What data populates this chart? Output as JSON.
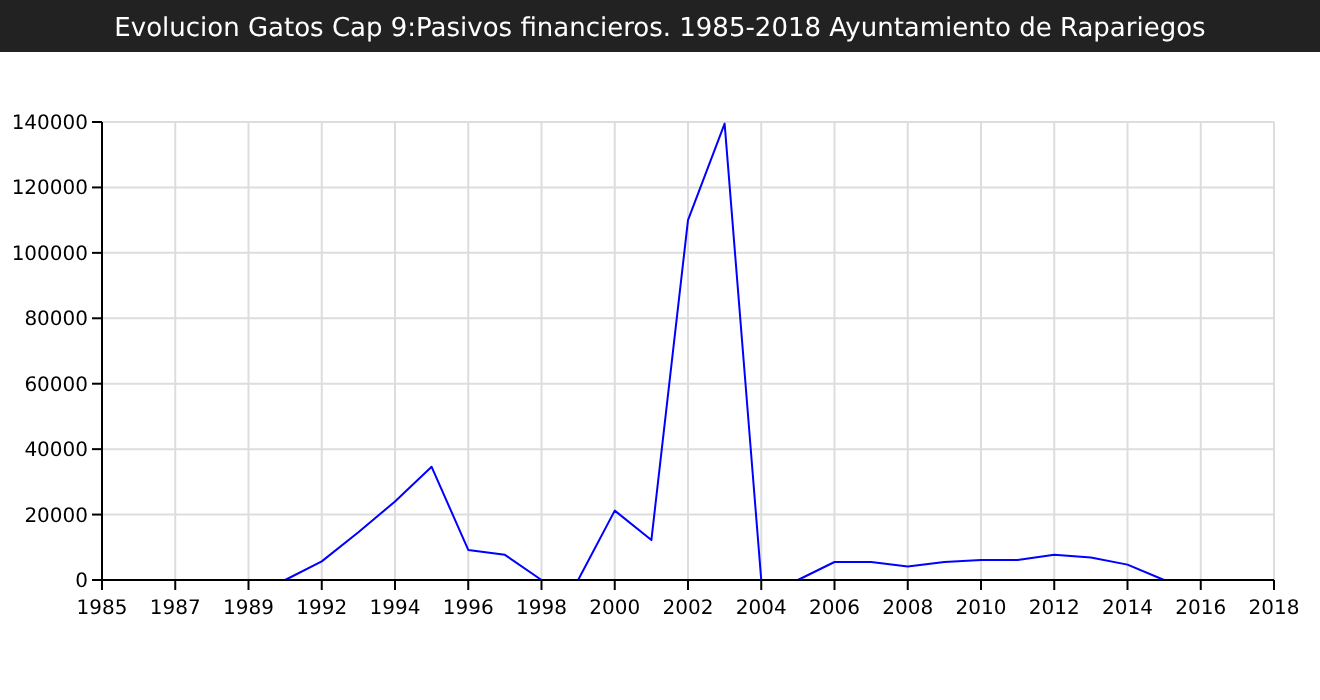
{
  "chart_data": {
    "type": "line",
    "title": "Evolucion Gatos Cap 9:Pasivos financieros. 1985-2018 Ayuntamiento de Rapariegos",
    "categories": [
      "1985",
      null,
      "1987",
      null,
      "1989",
      null,
      "1992",
      null,
      "1994",
      null,
      "1996",
      null,
      "1998",
      null,
      "2000",
      null,
      "2002",
      null,
      "2004",
      null,
      "2006",
      null,
      "2008",
      null,
      "2010",
      null,
      "2012",
      null,
      "2014",
      null,
      "2016",
      null,
      "2018"
    ],
    "series": [
      {
        "color": "#0000ff",
        "values": [
          null,
          null,
          null,
          null,
          null,
          0,
          5700,
          14600,
          24000,
          34600,
          9200,
          7700,
          0,
          0,
          21200,
          12200,
          110000,
          139500,
          0,
          0,
          5500,
          5500,
          4100,
          5500,
          6100,
          6100,
          7700,
          6900,
          4700,
          0,
          null,
          null,
          null
        ]
      }
    ],
    "ylim": [
      0,
      140000
    ],
    "yticks": [
      0,
      20000,
      40000,
      60000,
      80000,
      100000,
      120000,
      140000
    ],
    "grid": true,
    "marker": "none",
    "line_style": "solid"
  }
}
